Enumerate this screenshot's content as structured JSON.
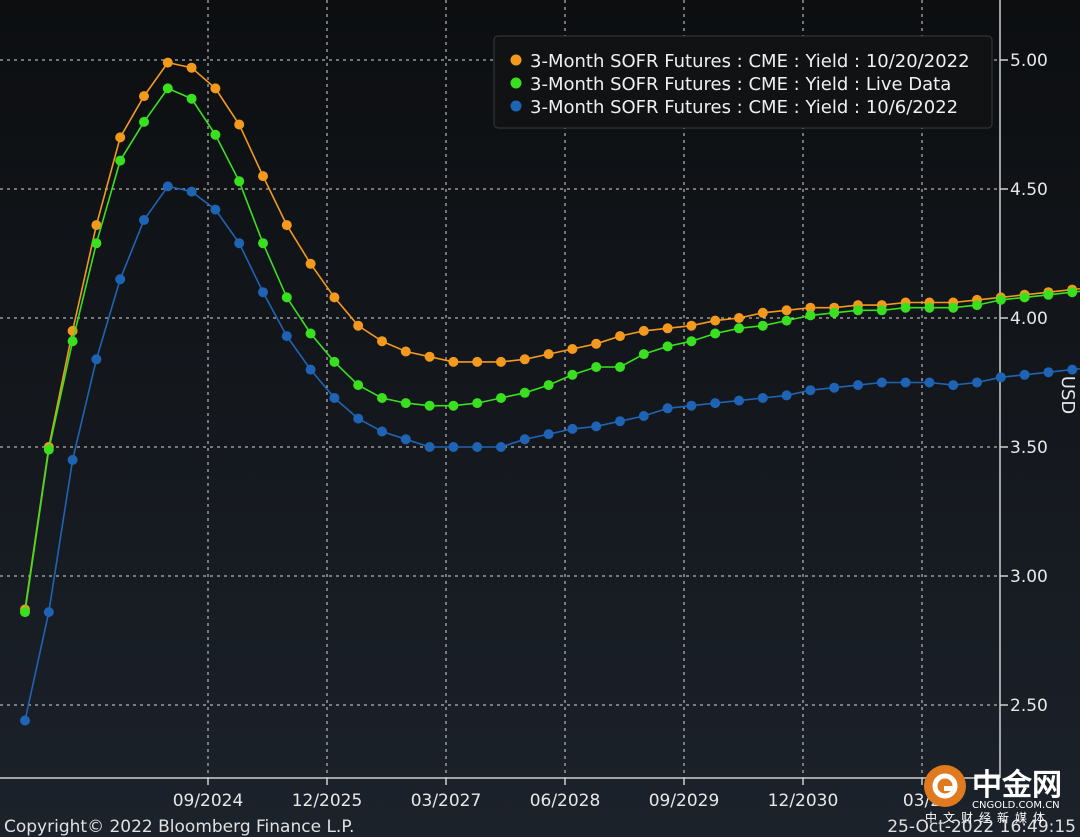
{
  "chart_data": {
    "type": "line",
    "ylabel": "USD",
    "ylim": [
      2.3,
      5.25
    ],
    "x_tick_labels": [
      "09/2024",
      "12/2025",
      "03/2027",
      "06/2028",
      "09/2029",
      "12/2030",
      "03/2"
    ],
    "y_tick_labels": [
      "2.50",
      "3.00",
      "3.50",
      "4.00",
      "4.50",
      "5.00"
    ],
    "y_ticks": [
      2.5,
      3.0,
      3.5,
      4.0,
      4.5,
      5.0
    ],
    "grid": true,
    "legend_position": "top-right",
    "footer_left": "Copyright© 2022 Bloomberg Finance L.P.",
    "footer_right": "25-Oct-2022 16:49:15",
    "series": [
      {
        "name": "3-Month SOFR Futures : CME : Yield : 10/20/2022",
        "color": "#f39a1e",
        "values": [
          2.87,
          3.5,
          3.95,
          4.36,
          4.7,
          4.86,
          4.99,
          4.97,
          4.89,
          4.75,
          4.55,
          4.36,
          4.21,
          4.08,
          3.97,
          3.91,
          3.87,
          3.85,
          3.83,
          3.83,
          3.83,
          3.84,
          3.86,
          3.88,
          3.9,
          3.93,
          3.95,
          3.96,
          3.97,
          3.99,
          4.0,
          4.02,
          4.03,
          4.04,
          4.04,
          4.05,
          4.05,
          4.06,
          4.06,
          4.06,
          4.07,
          4.08,
          4.09,
          4.1,
          4.11,
          4.12,
          4.14
        ]
      },
      {
        "name": "3-Month SOFR Futures : CME : Yield : Live Data",
        "color": "#39e01f",
        "values": [
          2.86,
          3.49,
          3.91,
          4.29,
          4.61,
          4.76,
          4.89,
          4.85,
          4.71,
          4.53,
          4.29,
          4.08,
          3.94,
          3.83,
          3.74,
          3.69,
          3.67,
          3.66,
          3.66,
          3.67,
          3.69,
          3.71,
          3.74,
          3.78,
          3.81,
          3.81,
          3.86,
          3.89,
          3.91,
          3.94,
          3.96,
          3.97,
          3.99,
          4.01,
          4.02,
          4.03,
          4.03,
          4.04,
          4.04,
          4.04,
          4.05,
          4.07,
          4.08,
          4.09,
          4.1,
          4.11,
          4.13
        ]
      },
      {
        "name": "3-Month SOFR Futures : CME : Yield : 10/6/2022",
        "color": "#1f64b4",
        "values": [
          2.44,
          2.86,
          3.45,
          3.84,
          4.15,
          4.38,
          4.51,
          4.49,
          4.42,
          4.29,
          4.1,
          3.93,
          3.8,
          3.69,
          3.61,
          3.56,
          3.53,
          3.5,
          3.5,
          3.5,
          3.5,
          3.53,
          3.55,
          3.57,
          3.58,
          3.6,
          3.62,
          3.65,
          3.66,
          3.67,
          3.68,
          3.69,
          3.7,
          3.72,
          3.73,
          3.74,
          3.75,
          3.75,
          3.75,
          3.74,
          3.75,
          3.77,
          3.78,
          3.79,
          3.8,
          3.81,
          3.83
        ]
      }
    ]
  },
  "watermark": {
    "brand": "中金网",
    "domain": "CNGOLD.COM.CN",
    "tagline": "中文财经新媒体"
  }
}
